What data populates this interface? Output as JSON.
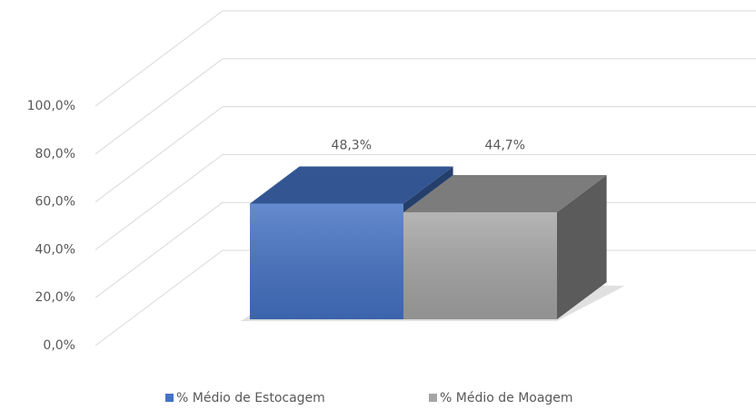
{
  "chart_data": {
    "type": "bar3d",
    "categories": [
      null
    ],
    "series": [
      {
        "name": "% Médio de Estocagem",
        "color": "#4472c4",
        "values": [
          48.3
        ],
        "value_labels": [
          "48,3%"
        ]
      },
      {
        "name": "% Médio de Moagem",
        "color": "#a5a5a5",
        "values": [
          44.7
        ],
        "value_labels": [
          "44,7%"
        ]
      }
    ],
    "ylim": [
      0,
      100
    ],
    "yticks": [
      {
        "value": 0,
        "label": "0,0%"
      },
      {
        "value": 20,
        "label": "20,0%"
      },
      {
        "value": 40,
        "label": "40,0%"
      },
      {
        "value": 60,
        "label": "60,0%"
      },
      {
        "value": 80,
        "label": "80,0%"
      },
      {
        "value": 100,
        "label": "100,0%"
      }
    ],
    "grid": true,
    "legend": "bottom"
  }
}
